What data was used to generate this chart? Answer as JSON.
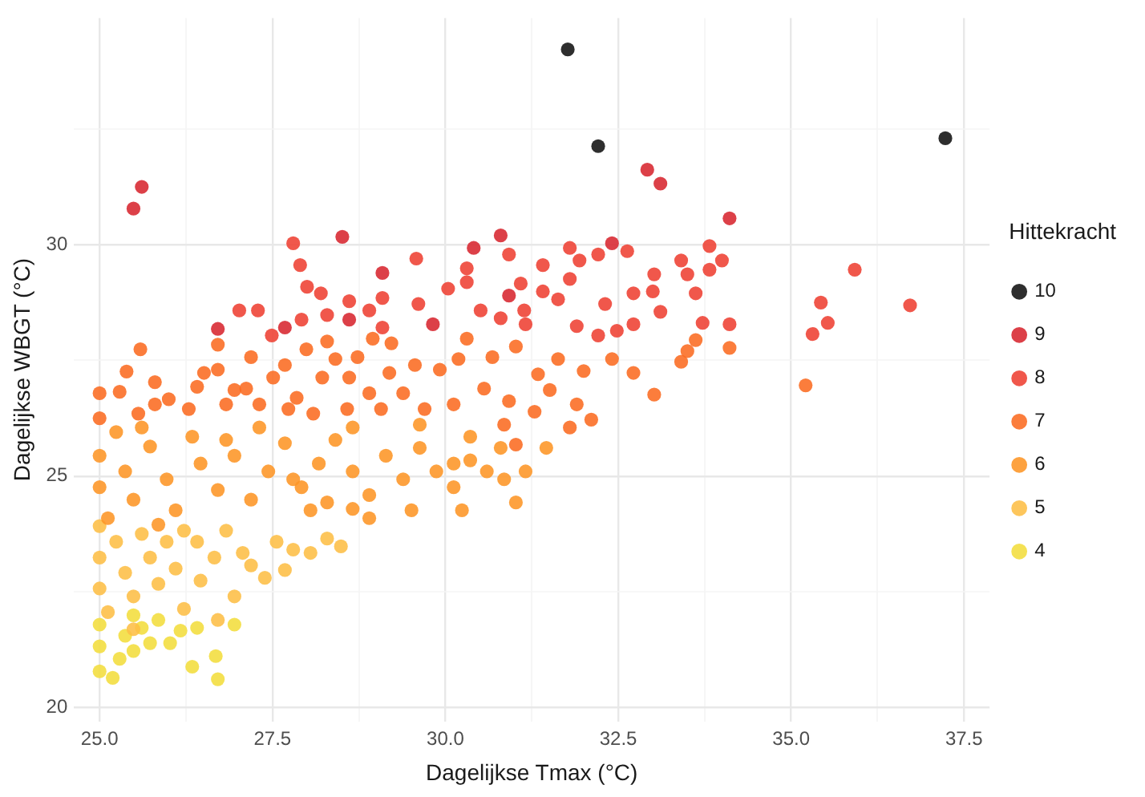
{
  "chart_data": {
    "type": "scatter",
    "xlabel": "Dagelijkse Tmax (°C)",
    "ylabel": "Dagelijkse WBGT (°C)",
    "legend_title": "Hittekracht",
    "legend": "right",
    "grid": true,
    "marker": "circle",
    "xlim": [
      24.63,
      37.87
    ],
    "ylim": [
      19.7,
      34.9
    ],
    "xticks": [
      {
        "value": 25,
        "label": "25.0"
      },
      {
        "value": 26.25,
        "label": null
      },
      {
        "value": 27.5,
        "label": "27.5"
      },
      {
        "value": 28.75,
        "label": null
      },
      {
        "value": 30,
        "label": "30.0"
      },
      {
        "value": 31.25,
        "label": null
      },
      {
        "value": 32.5,
        "label": "32.5"
      },
      {
        "value": 33.75,
        "label": null
      },
      {
        "value": 35,
        "label": "35.0"
      },
      {
        "value": 36.25,
        "label": null
      },
      {
        "value": 37.5,
        "label": "37.5"
      }
    ],
    "yticks": [
      20,
      {
        "value": 22.5,
        "label": null
      },
      25,
      {
        "value": 27.5,
        "label": null
      },
      30,
      {
        "value": 32.5,
        "label": null
      }
    ],
    "series": [
      {
        "name": "10",
        "color": "#111111",
        "x": [
          31.77,
          32.21,
          37.23
        ],
        "values": [
          34.22,
          32.13,
          32.3
        ]
      },
      {
        "name": "9",
        "color": "#d7262f",
        "x": [
          25.61,
          25.49,
          32.92,
          33.11,
          34.11,
          32.41,
          28.51,
          30.8,
          29.82,
          30.92,
          29.09,
          28.61,
          27.68,
          26.71,
          30.41
        ],
        "values": [
          31.25,
          30.78,
          31.62,
          31.32,
          30.57,
          30.03,
          30.17,
          30.2,
          28.28,
          28.9,
          29.39,
          28.38,
          28.21,
          28.18,
          29.93
        ]
      },
      {
        "name": "8",
        "color": "#ee4032",
        "x": [
          35.92,
          35.43,
          35.53,
          35.31,
          36.72,
          33.82,
          34.0,
          33.82,
          34.11,
          33.72,
          33.62,
          33.41,
          33.5,
          33.02,
          33.0,
          33.11,
          32.72,
          32.72,
          32.31,
          32.63,
          32.21,
          31.94,
          31.8,
          31.8,
          31.41,
          31.41,
          31.63,
          31.9,
          32.21,
          32.48,
          31.14,
          27.8,
          27.9,
          28.0,
          28.2,
          27.02,
          27.29,
          28.29,
          28.61,
          28.9,
          29.09,
          29.58,
          29.61,
          30.04,
          30.31,
          30.31,
          30.92,
          31.09,
          30.8,
          31.16,
          29.09,
          27.92,
          27.49,
          30.51
        ],
        "values": [
          29.46,
          28.75,
          28.31,
          28.07,
          28.69,
          29.97,
          29.66,
          29.46,
          28.28,
          28.31,
          28.95,
          29.66,
          29.36,
          29.36,
          28.99,
          28.55,
          28.95,
          28.28,
          28.72,
          29.86,
          29.79,
          29.66,
          29.93,
          29.26,
          29.56,
          28.99,
          28.82,
          28.24,
          28.04,
          28.14,
          28.58,
          30.03,
          29.56,
          29.09,
          28.95,
          28.58,
          28.58,
          28.48,
          28.78,
          28.58,
          28.85,
          29.7,
          28.72,
          29.05,
          29.49,
          29.19,
          29.79,
          29.16,
          28.41,
          28.28,
          28.21,
          28.38,
          28.04,
          28.58
        ]
      },
      {
        "name": "7",
        "color": "#fb6b21",
        "x": [
          25.59,
          25.39,
          25.0,
          25.29,
          25.0,
          25.8,
          26.0,
          26.51,
          26.71,
          26.71,
          26.41,
          26.83,
          27.19,
          27.12,
          27.31,
          27.68,
          27.99,
          28.29,
          28.41,
          28.22,
          27.85,
          28.09,
          28.61,
          28.73,
          28.95,
          29.22,
          29.19,
          28.9,
          29.39,
          29.56,
          29.92,
          30.19,
          30.31,
          30.68,
          30.56,
          30.12,
          29.7,
          31.02,
          30.92,
          30.85,
          29.07,
          28.58,
          27.73,
          26.29,
          25.56,
          25.8,
          27.51,
          26.95,
          31.51,
          31.8,
          31.9,
          32.11,
          32.72,
          33.02,
          33.41,
          33.5,
          33.62,
          34.11,
          35.21,
          31.63,
          31.34,
          32.0,
          32.41,
          31.29,
          31.02
        ],
        "values": [
          27.74,
          27.26,
          26.79,
          26.82,
          26.25,
          27.03,
          26.66,
          27.23,
          27.3,
          27.84,
          26.93,
          26.55,
          27.57,
          26.89,
          26.55,
          27.4,
          27.74,
          27.91,
          27.53,
          27.13,
          26.69,
          26.35,
          27.13,
          27.57,
          27.97,
          27.87,
          27.23,
          26.79,
          26.79,
          27.4,
          27.3,
          27.53,
          27.97,
          27.57,
          26.89,
          26.55,
          26.45,
          27.8,
          26.62,
          26.11,
          26.45,
          26.45,
          26.45,
          26.45,
          26.35,
          26.55,
          27.13,
          26.86,
          26.86,
          26.05,
          26.55,
          26.22,
          27.23,
          26.76,
          27.47,
          27.7,
          27.94,
          27.77,
          26.96,
          27.53,
          27.2,
          27.27,
          27.53,
          26.39,
          25.68
        ]
      },
      {
        "name": "6",
        "color": "#fd9526",
        "x": [
          25.0,
          25.0,
          25.12,
          25.37,
          25.49,
          25.73,
          25.97,
          26.1,
          26.46,
          26.71,
          26.95,
          27.19,
          27.44,
          27.68,
          27.92,
          28.17,
          28.41,
          28.66,
          28.9,
          29.14,
          29.39,
          29.63,
          29.87,
          30.12,
          30.36,
          30.6,
          30.85,
          31.02,
          31.16,
          30.12,
          29.51,
          28.9,
          28.66,
          28.29,
          28.05,
          25.24,
          26.34,
          27.31,
          28.66,
          29.63,
          30.36,
          25.61,
          26.83,
          27.8,
          25.85,
          30.24,
          31.46,
          30.8
        ],
        "values": [
          25.44,
          24.76,
          24.09,
          25.1,
          24.49,
          25.64,
          24.93,
          24.26,
          25.27,
          24.7,
          25.44,
          24.49,
          25.1,
          25.71,
          24.76,
          25.27,
          25.78,
          25.1,
          24.59,
          25.44,
          24.93,
          25.61,
          25.1,
          25.27,
          25.34,
          25.1,
          24.93,
          24.43,
          25.1,
          24.76,
          24.26,
          24.09,
          24.29,
          24.43,
          24.26,
          25.95,
          25.85,
          26.05,
          26.05,
          26.11,
          25.85,
          26.05,
          25.78,
          24.93,
          23.95,
          24.26,
          25.61,
          25.61
        ]
      },
      {
        "name": "5",
        "color": "#fdbe45",
        "x": [
          25.0,
          25.0,
          25.0,
          25.12,
          25.24,
          25.37,
          25.49,
          25.61,
          25.73,
          25.85,
          25.97,
          26.1,
          26.22,
          26.41,
          26.46,
          26.66,
          26.95,
          27.07,
          27.19,
          27.39,
          27.56,
          27.8,
          28.05,
          28.29,
          28.49,
          27.68,
          26.71,
          26.83,
          26.22,
          25.49
        ],
        "values": [
          23.92,
          23.24,
          22.57,
          22.06,
          23.58,
          22.91,
          22.4,
          23.75,
          23.24,
          22.67,
          23.58,
          23.0,
          22.13,
          23.58,
          22.74,
          23.24,
          22.4,
          23.34,
          23.07,
          22.8,
          23.58,
          23.41,
          23.34,
          23.65,
          23.48,
          22.97,
          21.89,
          23.82,
          23.82,
          21.69
        ]
      },
      {
        "name": "4",
        "color": "#f3dd3c",
        "x": [
          25.0,
          25.0,
          25.0,
          25.19,
          25.29,
          25.37,
          25.49,
          25.61,
          25.73,
          25.85,
          26.02,
          26.17,
          26.34,
          26.71,
          26.41,
          26.95,
          26.68,
          25.49
        ],
        "values": [
          21.79,
          21.32,
          20.78,
          20.64,
          21.05,
          21.55,
          21.99,
          21.72,
          21.39,
          21.89,
          21.39,
          21.66,
          20.88,
          20.61,
          21.72,
          21.79,
          21.11,
          21.22
        ]
      }
    ]
  }
}
